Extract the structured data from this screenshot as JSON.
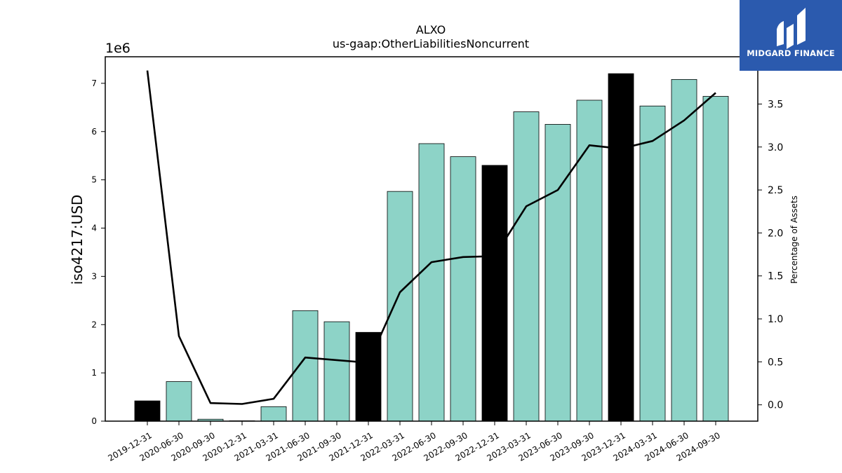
{
  "chart_data": {
    "type": "bar",
    "title": "ALXO",
    "subtitle": "us-gaap:OtherLiabilitiesNoncurrent",
    "ylabel": "iso4217:USD",
    "y_offset_label": "1e6",
    "y2label": "Percentage of Assets",
    "ylim": [
      0,
      7550000
    ],
    "y2lim": [
      -0.19,
      4.05
    ],
    "yticks": [
      0,
      1,
      2,
      3,
      4,
      5,
      6,
      7
    ],
    "y2ticks": [
      "0.0",
      "0.5",
      "1.0",
      "1.5",
      "2.0",
      "2.5",
      "3.0",
      "3.5"
    ],
    "categories": [
      "2019-12-31",
      "2020-06-30",
      "2020-09-30",
      "2020-12-31",
      "2021-03-31",
      "2021-06-30",
      "2021-09-30",
      "2021-12-31",
      "2022-03-31",
      "2022-06-30",
      "2022-09-30",
      "2022-12-31",
      "2023-03-31",
      "2023-06-30",
      "2023-09-30",
      "2023-12-31",
      "2024-03-31",
      "2024-06-30",
      "2024-09-30"
    ],
    "series": [
      {
        "kind": "bar",
        "axis": "left",
        "values": [
          420000,
          820000,
          40000,
          0,
          300000,
          2290000,
          2060000,
          1840000,
          4760000,
          5750000,
          5480000,
          5300000,
          6410000,
          6150000,
          6650000,
          7200000,
          6530000,
          7080000,
          6730000
        ],
        "highlight": [
          true,
          false,
          false,
          false,
          false,
          false,
          false,
          true,
          false,
          false,
          false,
          true,
          false,
          false,
          false,
          true,
          false,
          false,
          false
        ]
      },
      {
        "kind": "line",
        "axis": "right",
        "values": [
          3.89,
          0.8,
          0.02,
          0.01,
          0.07,
          0.55,
          0.52,
          0.49,
          1.31,
          1.66,
          1.72,
          1.73,
          2.31,
          2.5,
          3.02,
          2.98,
          3.07,
          3.31,
          3.63
        ]
      }
    ],
    "colors": {
      "bar": "#8dd3c7",
      "bar_highlight": "#000000",
      "line": "#000000"
    },
    "grid": false
  },
  "logo": {
    "text": "MIDGARD FINANCE"
  }
}
